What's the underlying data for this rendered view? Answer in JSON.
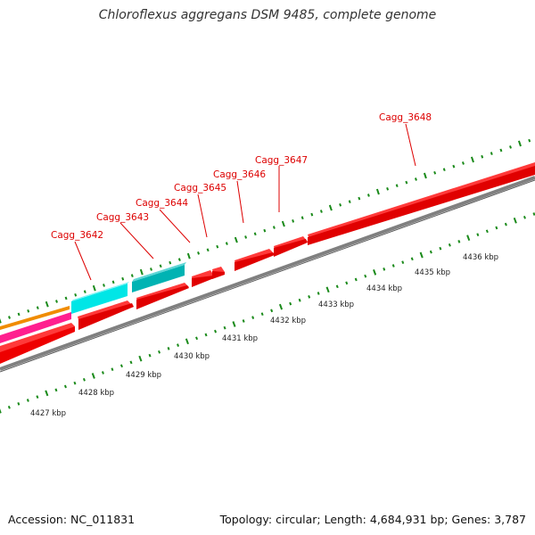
{
  "title": "Chloroflexus aggregans DSM 9485, complete genome",
  "footer": {
    "accession": "Accession: NC_011831",
    "summary": "Topology: circular; Length: 4,684,931 bp; Genes: 3,787"
  },
  "scale_labels": [
    "4427 kbp",
    "4428 kbp",
    "4429 kbp",
    "4430 kbp",
    "4431 kbp",
    "4432 kbp",
    "4433 kbp",
    "4434 kbp",
    "4435 kbp",
    "4436 kbp"
  ],
  "gene_labels": [
    "Cagg_3642",
    "Cagg_3643",
    "Cagg_3644",
    "Cagg_3645",
    "Cagg_3646",
    "Cagg_3647",
    "Cagg_3648"
  ],
  "colors": {
    "cds": "#ff0000",
    "cds_dark": "#b80000",
    "cyan": "#00e6e6",
    "teal": "#00b3b3",
    "orange": "#f08c00",
    "magenta": "#ff1f8f",
    "backbone": "#808080",
    "tick": "#1a8a1a",
    "label": "#dd0000"
  }
}
